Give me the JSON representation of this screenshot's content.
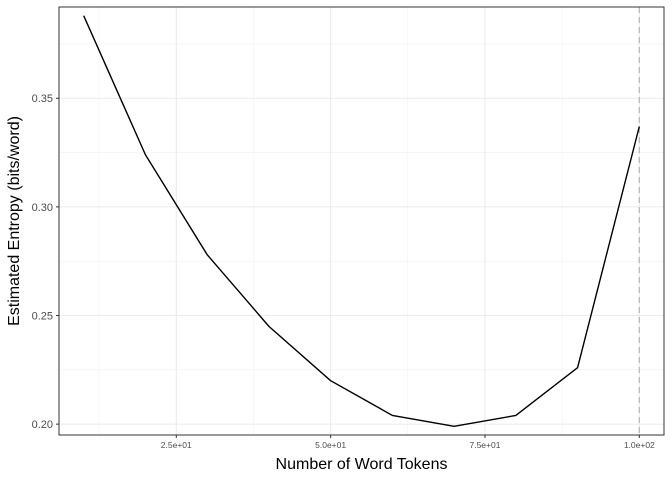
{
  "chart_data": {
    "type": "line",
    "title": "",
    "xlabel": "Number of Word Tokens",
    "ylabel": "Estimated Entropy (bits/word)",
    "xlim": [
      6,
      104
    ],
    "ylim": [
      0.195,
      0.392
    ],
    "x_ticks": [
      25,
      50,
      75,
      100
    ],
    "x_tick_labels": [
      "2.5e+01",
      "5.0e+01",
      "7.5e+01",
      "1.0e+02"
    ],
    "y_ticks": [
      0.2,
      0.25,
      0.3,
      0.35
    ],
    "y_tick_labels": [
      "0.20",
      "0.25",
      "0.30",
      "0.35"
    ],
    "grid": true,
    "vline": {
      "x": 100,
      "style": "dashed",
      "color": "#bdbdbd"
    },
    "series": [
      {
        "color": "#000000",
        "x": [
          10,
          20,
          30,
          40,
          50,
          60,
          70,
          80,
          90,
          100
        ],
        "y": [
          0.388,
          0.324,
          0.278,
          0.245,
          0.22,
          0.204,
          0.199,
          0.204,
          0.226,
          0.337
        ]
      }
    ]
  }
}
